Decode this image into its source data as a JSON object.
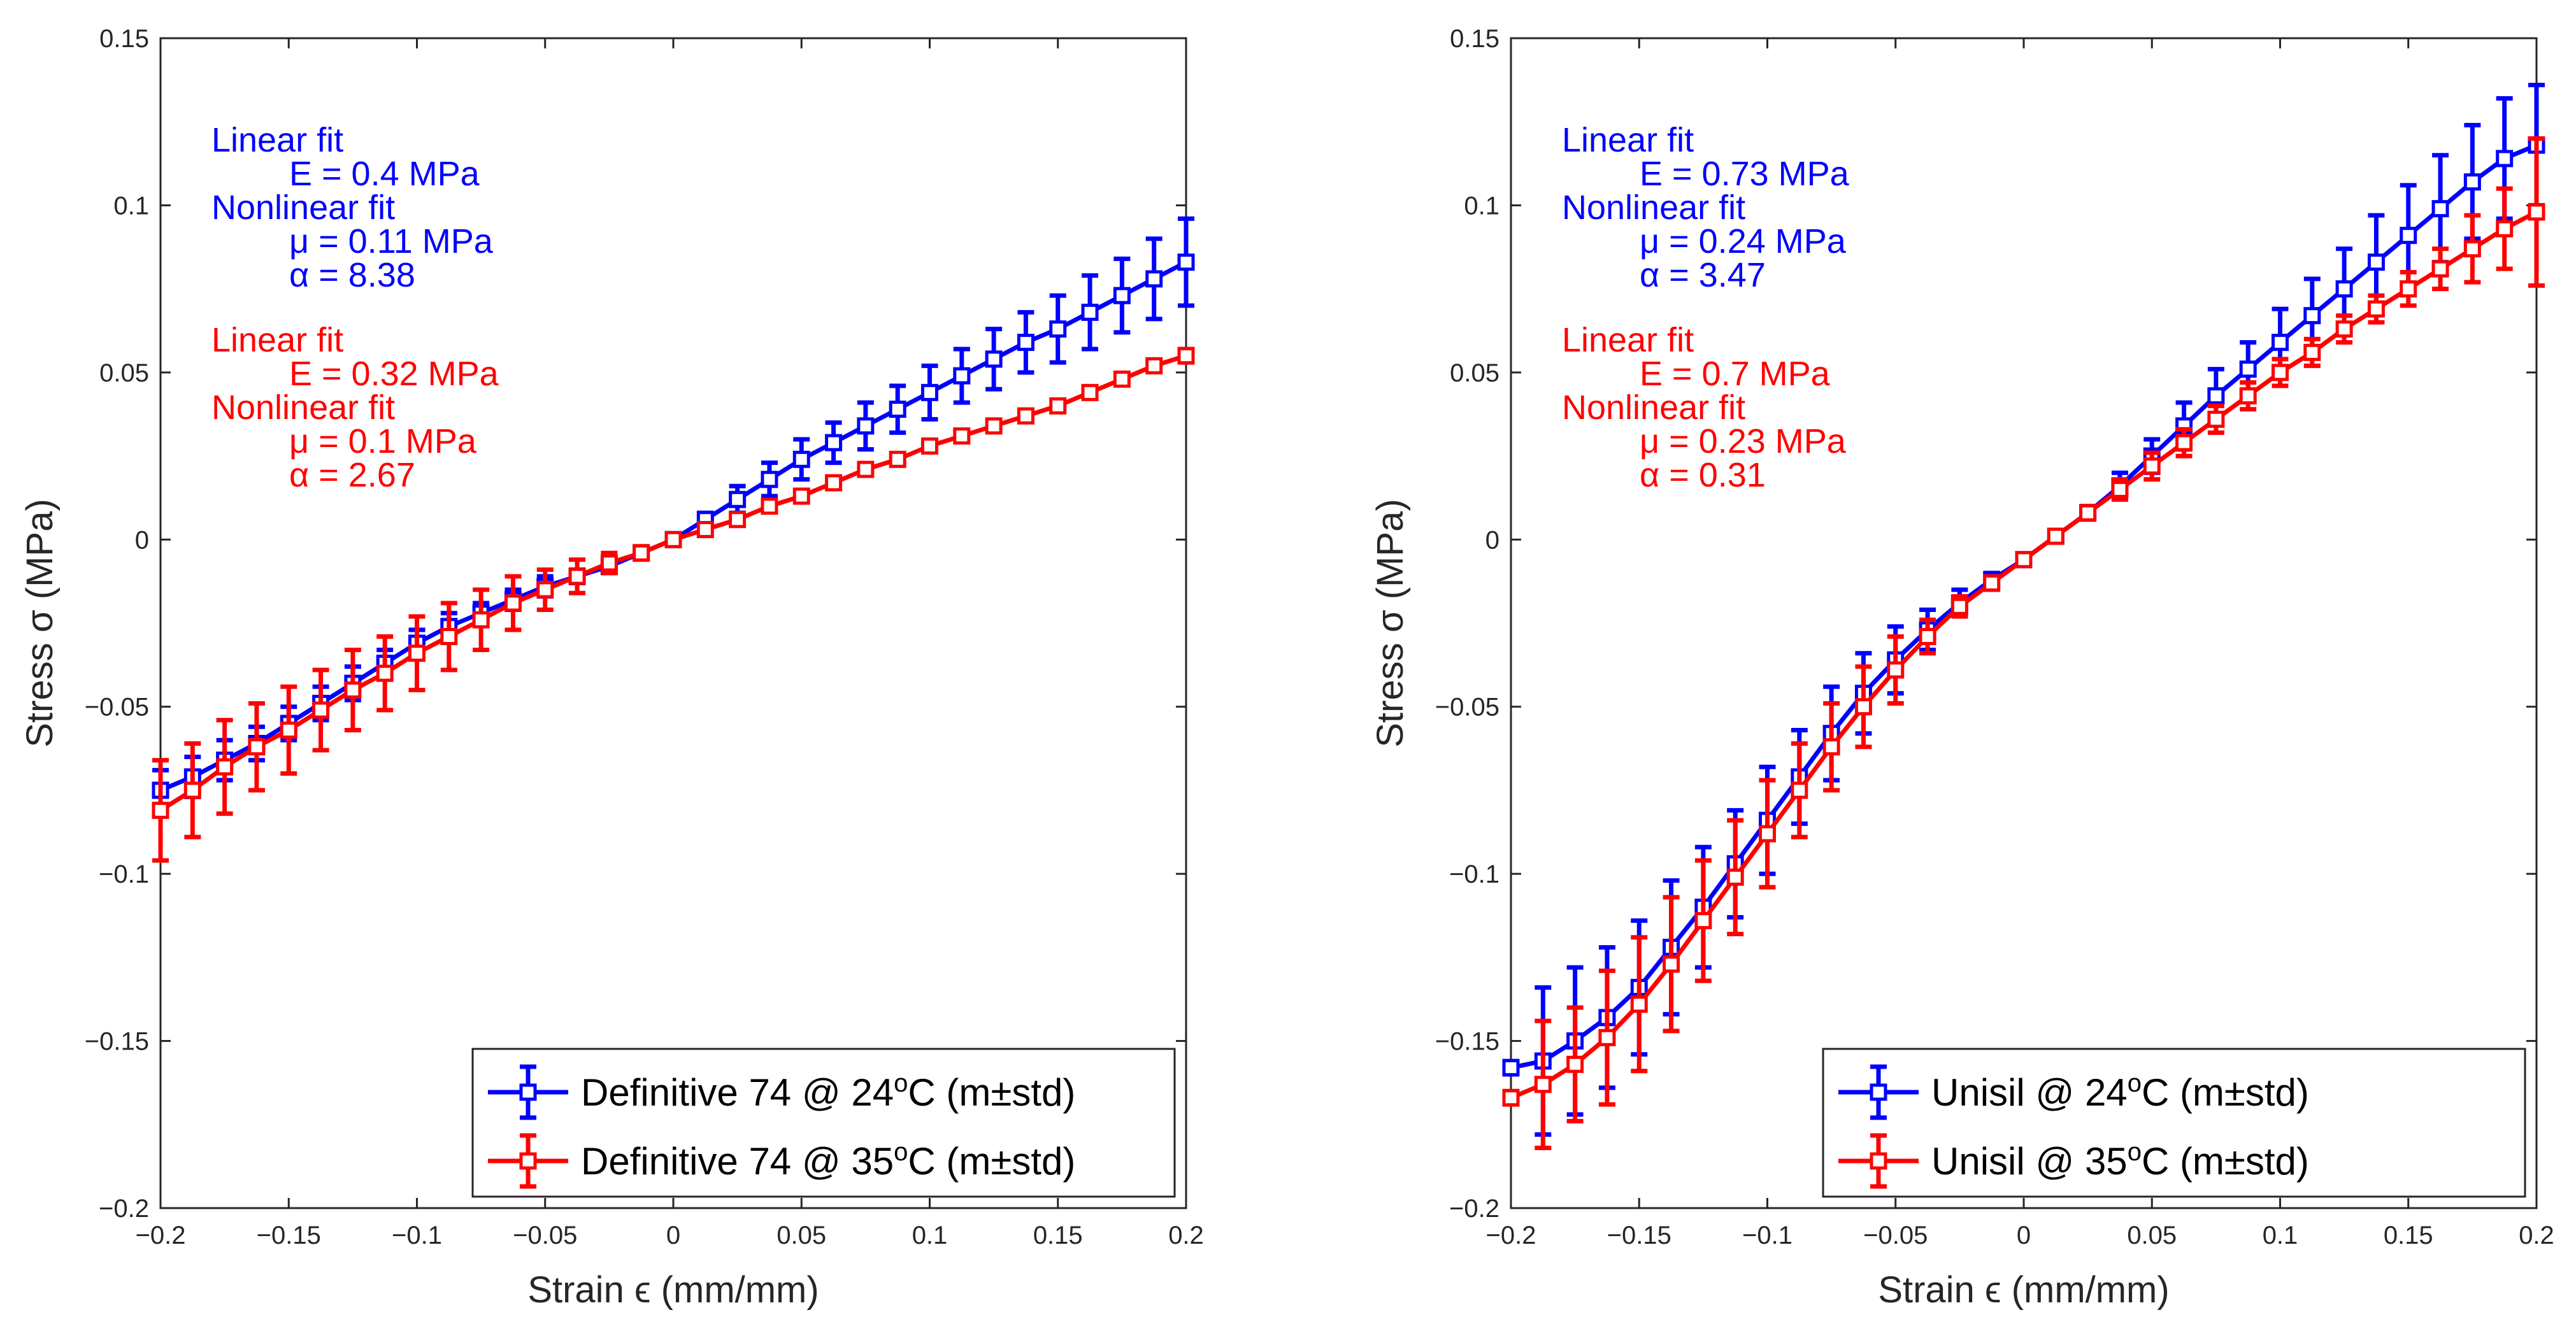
{
  "colors": {
    "blue": "#0000ff",
    "red": "#ff0000",
    "axis": "#262626"
  },
  "chart_data": [
    {
      "type": "line",
      "xlabel": "Strain ϵ (mm/mm)",
      "ylabel": "Stress σ (MPa)",
      "xlim": [
        -0.2,
        0.2
      ],
      "ylim": [
        -0.2,
        0.15
      ],
      "xticks": [
        -0.2,
        -0.15,
        -0.1,
        -0.05,
        0,
        0.05,
        0.1,
        0.15,
        0.2
      ],
      "yticks": [
        -0.2,
        -0.15,
        -0.1,
        -0.05,
        0,
        0.05,
        0.1,
        0.15
      ],
      "xtick_labels": [
        "−0.2",
        "−0.15",
        "−0.1",
        "−0.05",
        "0",
        "0.05",
        "0.1",
        "0.15",
        "0.2"
      ],
      "ytick_labels": [
        "−0.2",
        "−0.15",
        "−0.1",
        "−0.05",
        "0",
        "0.05",
        "0.1",
        "0.15"
      ],
      "legend_position": "bottom-right",
      "annotations": [
        {
          "color": "blue",
          "lines": [
            "Linear fit",
            "E = 0.4 MPa",
            "Nonlinear fit",
            "μ = 0.11 MPa",
            "α = 8.38"
          ]
        },
        {
          "color": "red",
          "lines": [
            "Linear fit",
            "E = 0.32 MPa",
            "Nonlinear fit",
            "μ = 0.1 MPa",
            "α = 2.67"
          ]
        }
      ],
      "series": [
        {
          "name": "Definitive 74 @ 24°C (m±std)",
          "legend_text": "Definitive 74 @ 24",
          "legend_sup": "o",
          "legend_suffix": "C (m±std)",
          "color": "blue",
          "x": [
            -0.2,
            -0.1875,
            -0.175,
            -0.1625,
            -0.15,
            -0.1375,
            -0.125,
            -0.1125,
            -0.1,
            -0.0875,
            -0.075,
            -0.0625,
            -0.05,
            -0.0375,
            -0.025,
            -0.0125,
            0,
            0.0125,
            0.025,
            0.0375,
            0.05,
            0.0625,
            0.075,
            0.0875,
            0.1,
            0.1125,
            0.125,
            0.1375,
            0.15,
            0.1625,
            0.175,
            0.1875,
            0.2
          ],
          "y": [
            -0.075,
            -0.071,
            -0.066,
            -0.061,
            -0.055,
            -0.049,
            -0.043,
            -0.037,
            -0.031,
            -0.026,
            -0.022,
            -0.018,
            -0.014,
            -0.011,
            -0.008,
            -0.004,
            0,
            0.006,
            0.012,
            0.018,
            0.024,
            0.029,
            0.034,
            0.039,
            0.044,
            0.049,
            0.054,
            0.059,
            0.063,
            0.068,
            0.073,
            0.078,
            0.083
          ],
          "err": [
            0.006,
            0.006,
            0.006,
            0.005,
            0.005,
            0.005,
            0.005,
            0.004,
            0.004,
            0.004,
            0.003,
            0.003,
            0.003,
            0.002,
            0.002,
            0.001,
            0,
            0.002,
            0.004,
            0.005,
            0.006,
            0.006,
            0.007,
            0.007,
            0.008,
            0.008,
            0.009,
            0.009,
            0.01,
            0.011,
            0.011,
            0.012,
            0.013
          ]
        },
        {
          "name": "Definitive 74 @ 35°C (m±std)",
          "legend_text": "Definitive 74 @ 35",
          "legend_sup": "o",
          "legend_suffix": "C (m±std)",
          "color": "red",
          "x": [
            -0.2,
            -0.1875,
            -0.175,
            -0.1625,
            -0.15,
            -0.1375,
            -0.125,
            -0.1125,
            -0.1,
            -0.0875,
            -0.075,
            -0.0625,
            -0.05,
            -0.0375,
            -0.025,
            -0.0125,
            0,
            0.0125,
            0.025,
            0.0375,
            0.05,
            0.0625,
            0.075,
            0.0875,
            0.1,
            0.1125,
            0.125,
            0.1375,
            0.15,
            0.1625,
            0.175,
            0.1875,
            0.2
          ],
          "y": [
            -0.081,
            -0.075,
            -0.068,
            -0.062,
            -0.057,
            -0.051,
            -0.045,
            -0.04,
            -0.034,
            -0.029,
            -0.024,
            -0.019,
            -0.015,
            -0.011,
            -0.007,
            -0.004,
            0,
            0.003,
            0.006,
            0.01,
            0.013,
            0.017,
            0.021,
            0.024,
            0.028,
            0.031,
            0.034,
            0.037,
            0.04,
            0.044,
            0.048,
            0.052,
            0.055
          ],
          "err": [
            0.015,
            0.014,
            0.014,
            0.013,
            0.013,
            0.012,
            0.012,
            0.011,
            0.011,
            0.01,
            0.009,
            0.008,
            0.006,
            0.005,
            0.003,
            0.002,
            0,
            0.001,
            0.001,
            0.001,
            0.001,
            0.001,
            0.001,
            0.001,
            0.001,
            0.001,
            0.001,
            0.001,
            0.001,
            0.001,
            0.001,
            0.001,
            0.002
          ]
        }
      ]
    },
    {
      "type": "line",
      "xlabel": "Strain ϵ (mm/mm)",
      "ylabel": "Stress σ (MPa)",
      "xlim": [
        -0.2,
        0.2
      ],
      "ylim": [
        -0.2,
        0.15
      ],
      "xticks": [
        -0.2,
        -0.15,
        -0.1,
        -0.05,
        0,
        0.05,
        0.1,
        0.15,
        0.2
      ],
      "yticks": [
        -0.2,
        -0.15,
        -0.1,
        -0.05,
        0,
        0.05,
        0.1,
        0.15
      ],
      "xtick_labels": [
        "−0.2",
        "−0.15",
        "−0.1",
        "−0.05",
        "0",
        "0.05",
        "0.1",
        "0.15",
        "0.2"
      ],
      "ytick_labels": [
        "−0.2",
        "−0.15",
        "−0.1",
        "−0.05",
        "0",
        "0.05",
        "0.1",
        "0.15"
      ],
      "legend_position": "bottom-right",
      "annotations": [
        {
          "color": "blue",
          "lines": [
            "Linear fit",
            "E = 0.73 MPa",
            "Nonlinear fit",
            "μ = 0.24 MPa",
            "α = 3.47"
          ]
        },
        {
          "color": "red",
          "lines": [
            "Linear fit",
            "E = 0.7 MPa",
            "Nonlinear fit",
            "μ = 0.23 MPa",
            "α = 0.31"
          ]
        }
      ],
      "series": [
        {
          "name": "Unisil @ 24°C (m±std)",
          "legend_text": "Unisil @ 24",
          "legend_sup": "o",
          "legend_suffix": "C (m±std)",
          "color": "blue",
          "x": [
            -0.2,
            -0.1875,
            -0.175,
            -0.1625,
            -0.15,
            -0.1375,
            -0.125,
            -0.1125,
            -0.1,
            -0.0875,
            -0.075,
            -0.0625,
            -0.05,
            -0.0375,
            -0.025,
            -0.0125,
            0,
            0.0125,
            0.025,
            0.0375,
            0.05,
            0.0625,
            0.075,
            0.0875,
            0.1,
            0.1125,
            0.125,
            0.1375,
            0.15,
            0.1625,
            0.175,
            0.1875,
            0.2
          ],
          "y": [
            -0.158,
            -0.156,
            -0.15,
            -0.143,
            -0.134,
            -0.122,
            -0.11,
            -0.097,
            -0.084,
            -0.071,
            -0.058,
            -0.046,
            -0.036,
            -0.027,
            -0.019,
            -0.012,
            -0.006,
            0.001,
            0.008,
            0.016,
            0.025,
            0.034,
            0.043,
            0.051,
            0.059,
            0.067,
            0.075,
            0.083,
            0.091,
            0.099,
            0.107,
            0.114,
            0.118
          ],
          "err": [
            0.002,
            0.022,
            0.022,
            0.021,
            0.02,
            0.02,
            0.018,
            0.016,
            0.016,
            0.014,
            0.014,
            0.012,
            0.01,
            0.006,
            0.004,
            0.002,
            0.001,
            0.001,
            0.002,
            0.004,
            0.005,
            0.007,
            0.008,
            0.008,
            0.01,
            0.011,
            0.012,
            0.014,
            0.015,
            0.016,
            0.017,
            0.018,
            0.018
          ]
        },
        {
          "name": "Unisil @ 35°C (m±std)",
          "legend_text": "Unisil @ 35",
          "legend_sup": "o",
          "legend_suffix": "C (m±std)",
          "color": "red",
          "x": [
            -0.2,
            -0.1875,
            -0.175,
            -0.1625,
            -0.15,
            -0.1375,
            -0.125,
            -0.1125,
            -0.1,
            -0.0875,
            -0.075,
            -0.0625,
            -0.05,
            -0.0375,
            -0.025,
            -0.0125,
            0,
            0.0125,
            0.025,
            0.0375,
            0.05,
            0.0625,
            0.075,
            0.0875,
            0.1,
            0.1125,
            0.125,
            0.1375,
            0.15,
            0.1625,
            0.175,
            0.1875,
            0.2
          ],
          "y": [
            -0.167,
            -0.163,
            -0.157,
            -0.149,
            -0.139,
            -0.127,
            -0.114,
            -0.101,
            -0.088,
            -0.075,
            -0.062,
            -0.05,
            -0.039,
            -0.029,
            -0.02,
            -0.013,
            -0.006,
            0.001,
            0.008,
            0.015,
            0.022,
            0.029,
            0.036,
            0.043,
            0.05,
            0.056,
            0.063,
            0.069,
            0.075,
            0.081,
            0.087,
            0.093,
            0.098
          ],
          "err": [
            0.002,
            0.019,
            0.017,
            0.02,
            0.02,
            0.02,
            0.018,
            0.017,
            0.016,
            0.014,
            0.013,
            0.012,
            0.01,
            0.005,
            0.003,
            0.002,
            0.001,
            0.001,
            0.002,
            0.003,
            0.004,
            0.004,
            0.004,
            0.004,
            0.004,
            0.004,
            0.004,
            0.004,
            0.005,
            0.006,
            0.01,
            0.012,
            0.022
          ]
        }
      ]
    }
  ]
}
